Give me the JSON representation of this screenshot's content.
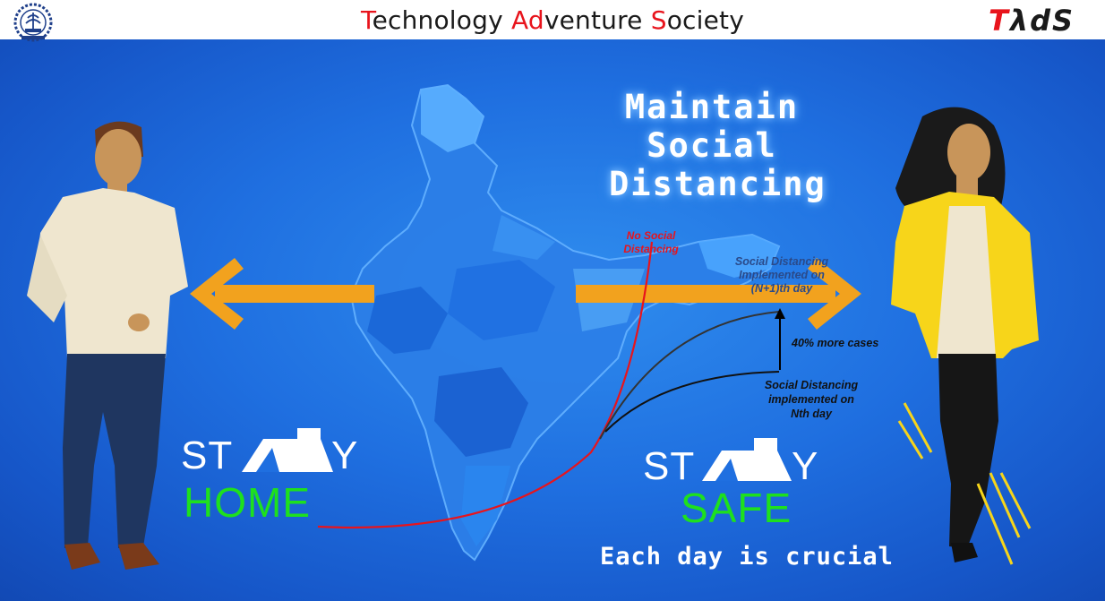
{
  "header": {
    "title_parts": [
      {
        "text": "T",
        "highlight": true
      },
      {
        "text": "echnology ",
        "highlight": false
      },
      {
        "text": "Ad",
        "highlight": true
      },
      {
        "text": "venture ",
        "highlight": false
      },
      {
        "text": "S",
        "highlight": true
      },
      {
        "text": "ociety",
        "highlight": false
      }
    ],
    "logo_right_part1": "T",
    "logo_right_part2": "λdS",
    "logo_left_icon": "iit-kgp-emblem-icon"
  },
  "headline": {
    "line1": "Maintain",
    "line2": "Social",
    "line3": "Distancing"
  },
  "graph_labels": {
    "no_sd": "No Social\nDistancing",
    "sd_n1_line1": "Social Distancing",
    "sd_n1_line2": "Implemented on",
    "sd_n1_line3": "(N+1)th day",
    "more_cases": "40% more cases",
    "sd_n_line1": "Social Distancing",
    "sd_n_line2": "implemented  on",
    "sd_n_line3": "Nth day"
  },
  "left_message": {
    "stay_a": "ST",
    "stay_b": "Y",
    "word": "HOME"
  },
  "right_message": {
    "stay_a": "ST",
    "stay_b": "Y",
    "word": "SAFE"
  },
  "footer_text": "Each day is crucial",
  "colors": {
    "accent_red": "#e8141c",
    "arrow_orange": "#f2a21e",
    "green_text": "#1ee01e",
    "background_blue": "#1f6fe0"
  }
}
